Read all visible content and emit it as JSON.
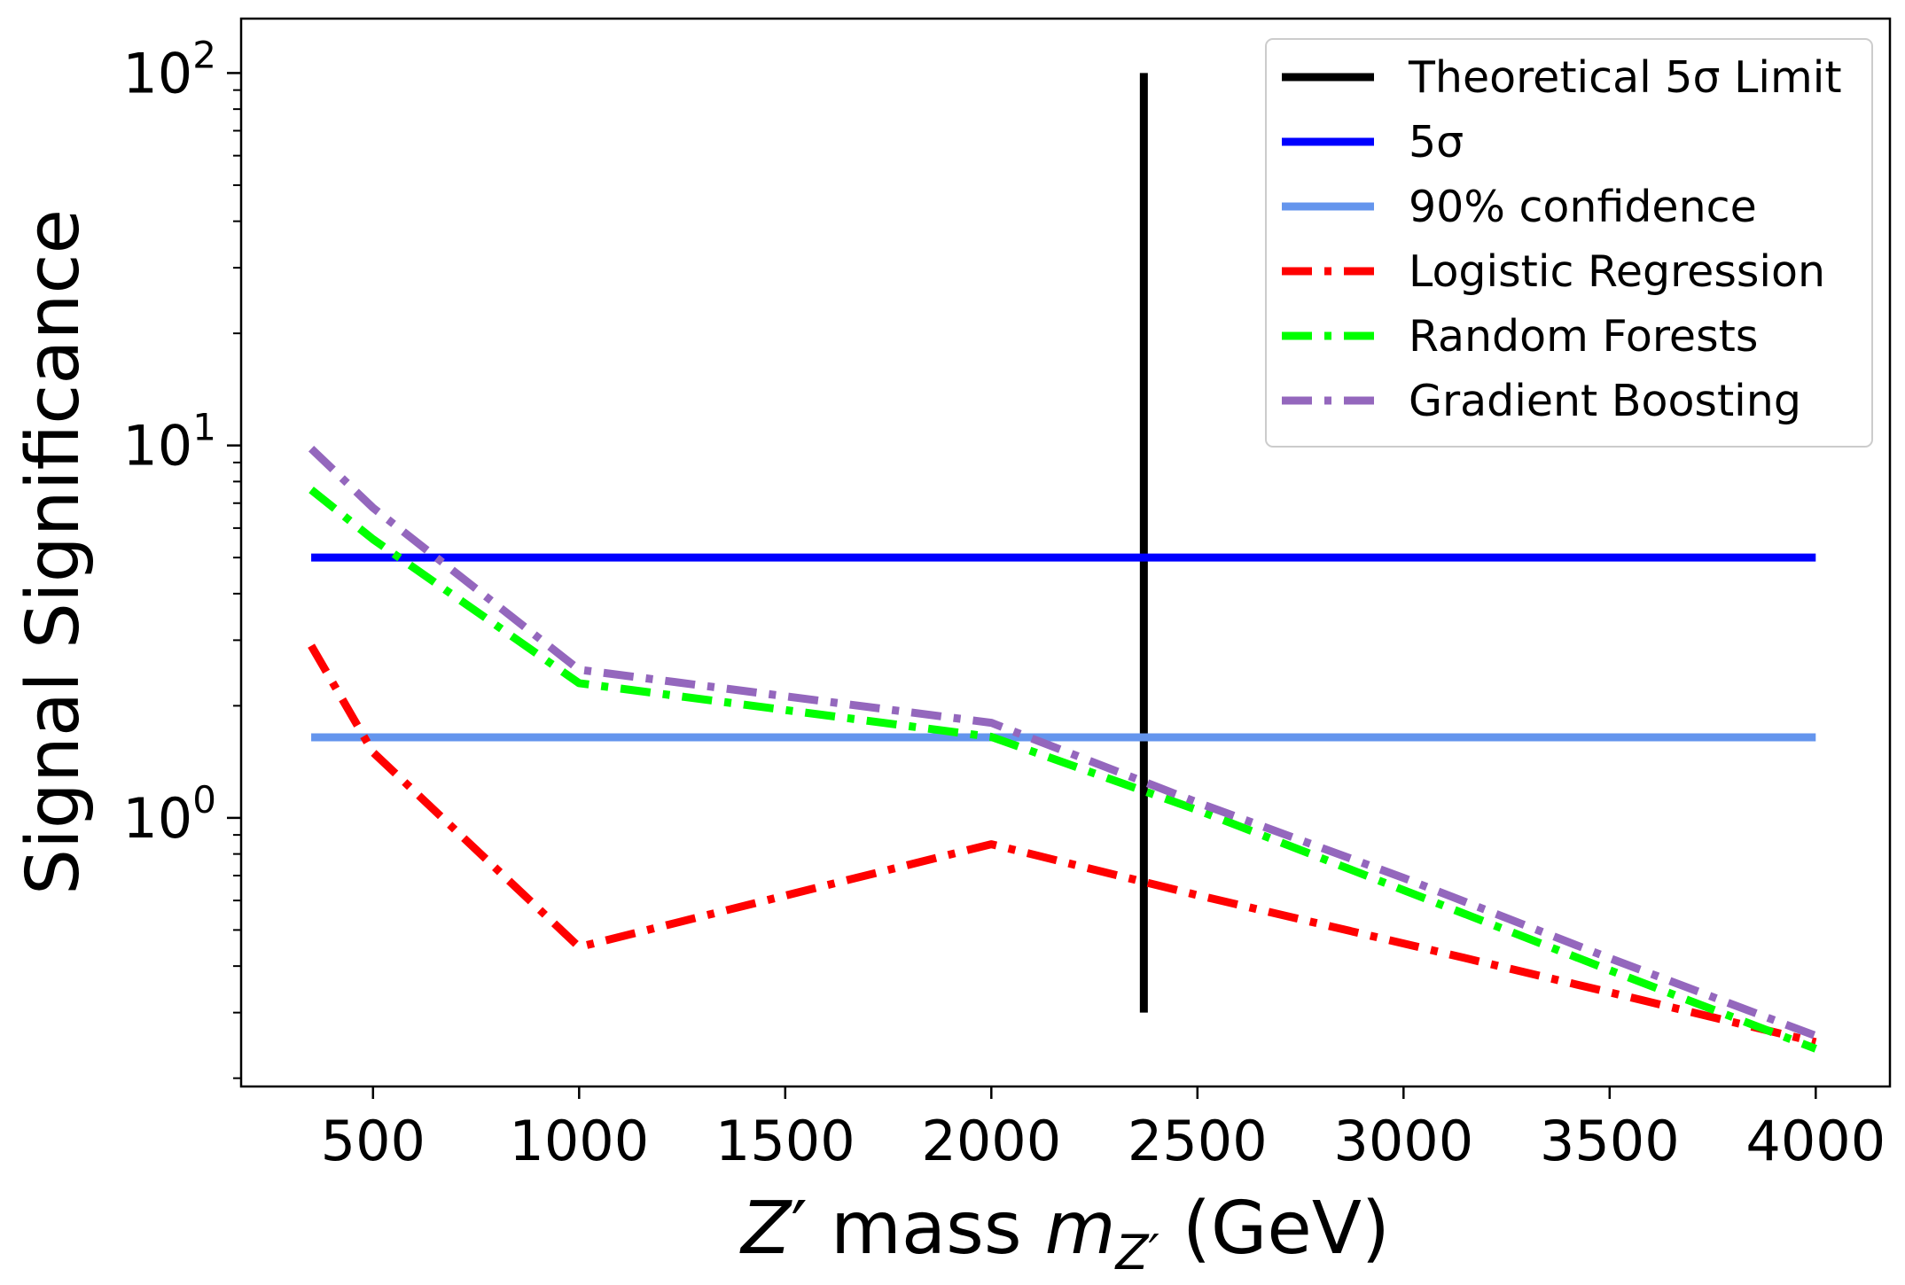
{
  "chart_data": {
    "type": "line",
    "x": [
      350,
      500,
      1000,
      2000,
      2500,
      3000,
      3500,
      4000
    ],
    "series": [
      {
        "name": "Logistic Regression",
        "color": "#ff0000",
        "style": "dashdot",
        "values": [
          2.9,
          1.5,
          0.45,
          0.85,
          0.62,
          0.46,
          0.34,
          0.25
        ]
      },
      {
        "name": "Random Forests",
        "color": "#00ff00",
        "style": "dashdot",
        "values": [
          7.6,
          5.6,
          2.3,
          1.65,
          1.05,
          0.64,
          0.39,
          0.24
        ]
      },
      {
        "name": "Gradient Boosting",
        "color": "#9467bd",
        "style": "dashdot",
        "values": [
          9.8,
          6.8,
          2.5,
          1.8,
          1.1,
          0.69,
          0.42,
          0.26
        ]
      }
    ],
    "hlines": [
      {
        "name": "5σ",
        "color": "#0000ff",
        "y": 5,
        "xmin": 350,
        "xmax": 4000
      },
      {
        "name": "90% confidence",
        "color": "#6495ed",
        "y": 1.645,
        "xmin": 350,
        "xmax": 4000
      }
    ],
    "vlines": [
      {
        "name": "Theoretical 5σ Limit",
        "color": "#000000",
        "x": 2370,
        "ymin": 0.3,
        "ymax": 100
      }
    ],
    "legend_order": [
      "Theoretical 5σ Limit",
      "5σ",
      "90% confidence",
      "Logistic Regression",
      "Random Forests",
      "Gradient Boosting"
    ],
    "xlim": [
      180,
      4180
    ],
    "ylim": [
      0.19,
      140
    ],
    "yscale": "log",
    "xticks": [
      500,
      1000,
      1500,
      2000,
      2500,
      3000,
      3500,
      4000
    ],
    "yticks": [
      {
        "value": 1,
        "base": "10",
        "exp": "0"
      },
      {
        "value": 10,
        "base": "10",
        "exp": "1"
      },
      {
        "value": 100,
        "base": "10",
        "exp": "2"
      }
    ],
    "xlabel": "Z′ mass m_Z′ (GeV)",
    "xlabel_parts": {
      "z": "Z",
      "prime": "′",
      "mid": " mass ",
      "m": "m",
      "sub": "Z′",
      "tail": " (GeV)"
    },
    "ylabel": "Signal Significance",
    "grid": false,
    "legend_position": "top-right"
  }
}
